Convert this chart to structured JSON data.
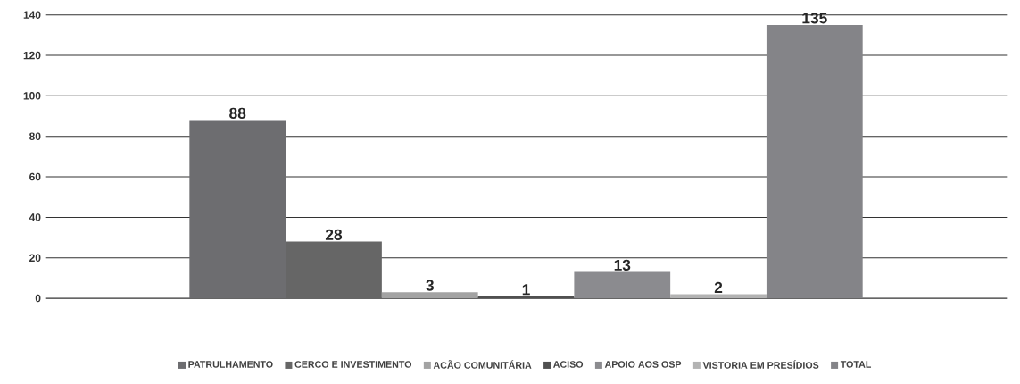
{
  "chart_data": {
    "type": "bar",
    "categories": [
      null
    ],
    "series": [
      {
        "name": "PATRULHAMENTO",
        "color": "#6d6d70",
        "values": [
          88
        ],
        "value_labels": [
          "88"
        ]
      },
      {
        "name": "CERCO E INVESTIMENTO",
        "color": "#666666",
        "values": [
          28
        ],
        "value_labels": [
          "28"
        ]
      },
      {
        "name": "ACÃO COMUNITÁRIA",
        "color": "#a3a3a3",
        "values": [
          3
        ],
        "value_labels": [
          "3"
        ]
      },
      {
        "name": "ACISO",
        "color": "#505050",
        "values": [
          1
        ],
        "value_labels": [
          "1"
        ]
      },
      {
        "name": "APOIO AOS OSP",
        "color": "#8b8b8f",
        "values": [
          13
        ],
        "value_labels": [
          "13"
        ]
      },
      {
        "name": "VISTORIA EM PRESÍDIOS",
        "color": "#b3b3b3",
        "values": [
          2
        ],
        "value_labels": [
          "2"
        ]
      },
      {
        "name": "TOTAL",
        "color": "#848488",
        "values": [
          135
        ],
        "value_labels": [
          "135"
        ]
      }
    ],
    "ylim": [
      0,
      140
    ],
    "yticks": [
      0,
      20,
      40,
      60,
      80,
      100,
      120,
      140
    ],
    "grid": "y",
    "legend": "bottom"
  }
}
